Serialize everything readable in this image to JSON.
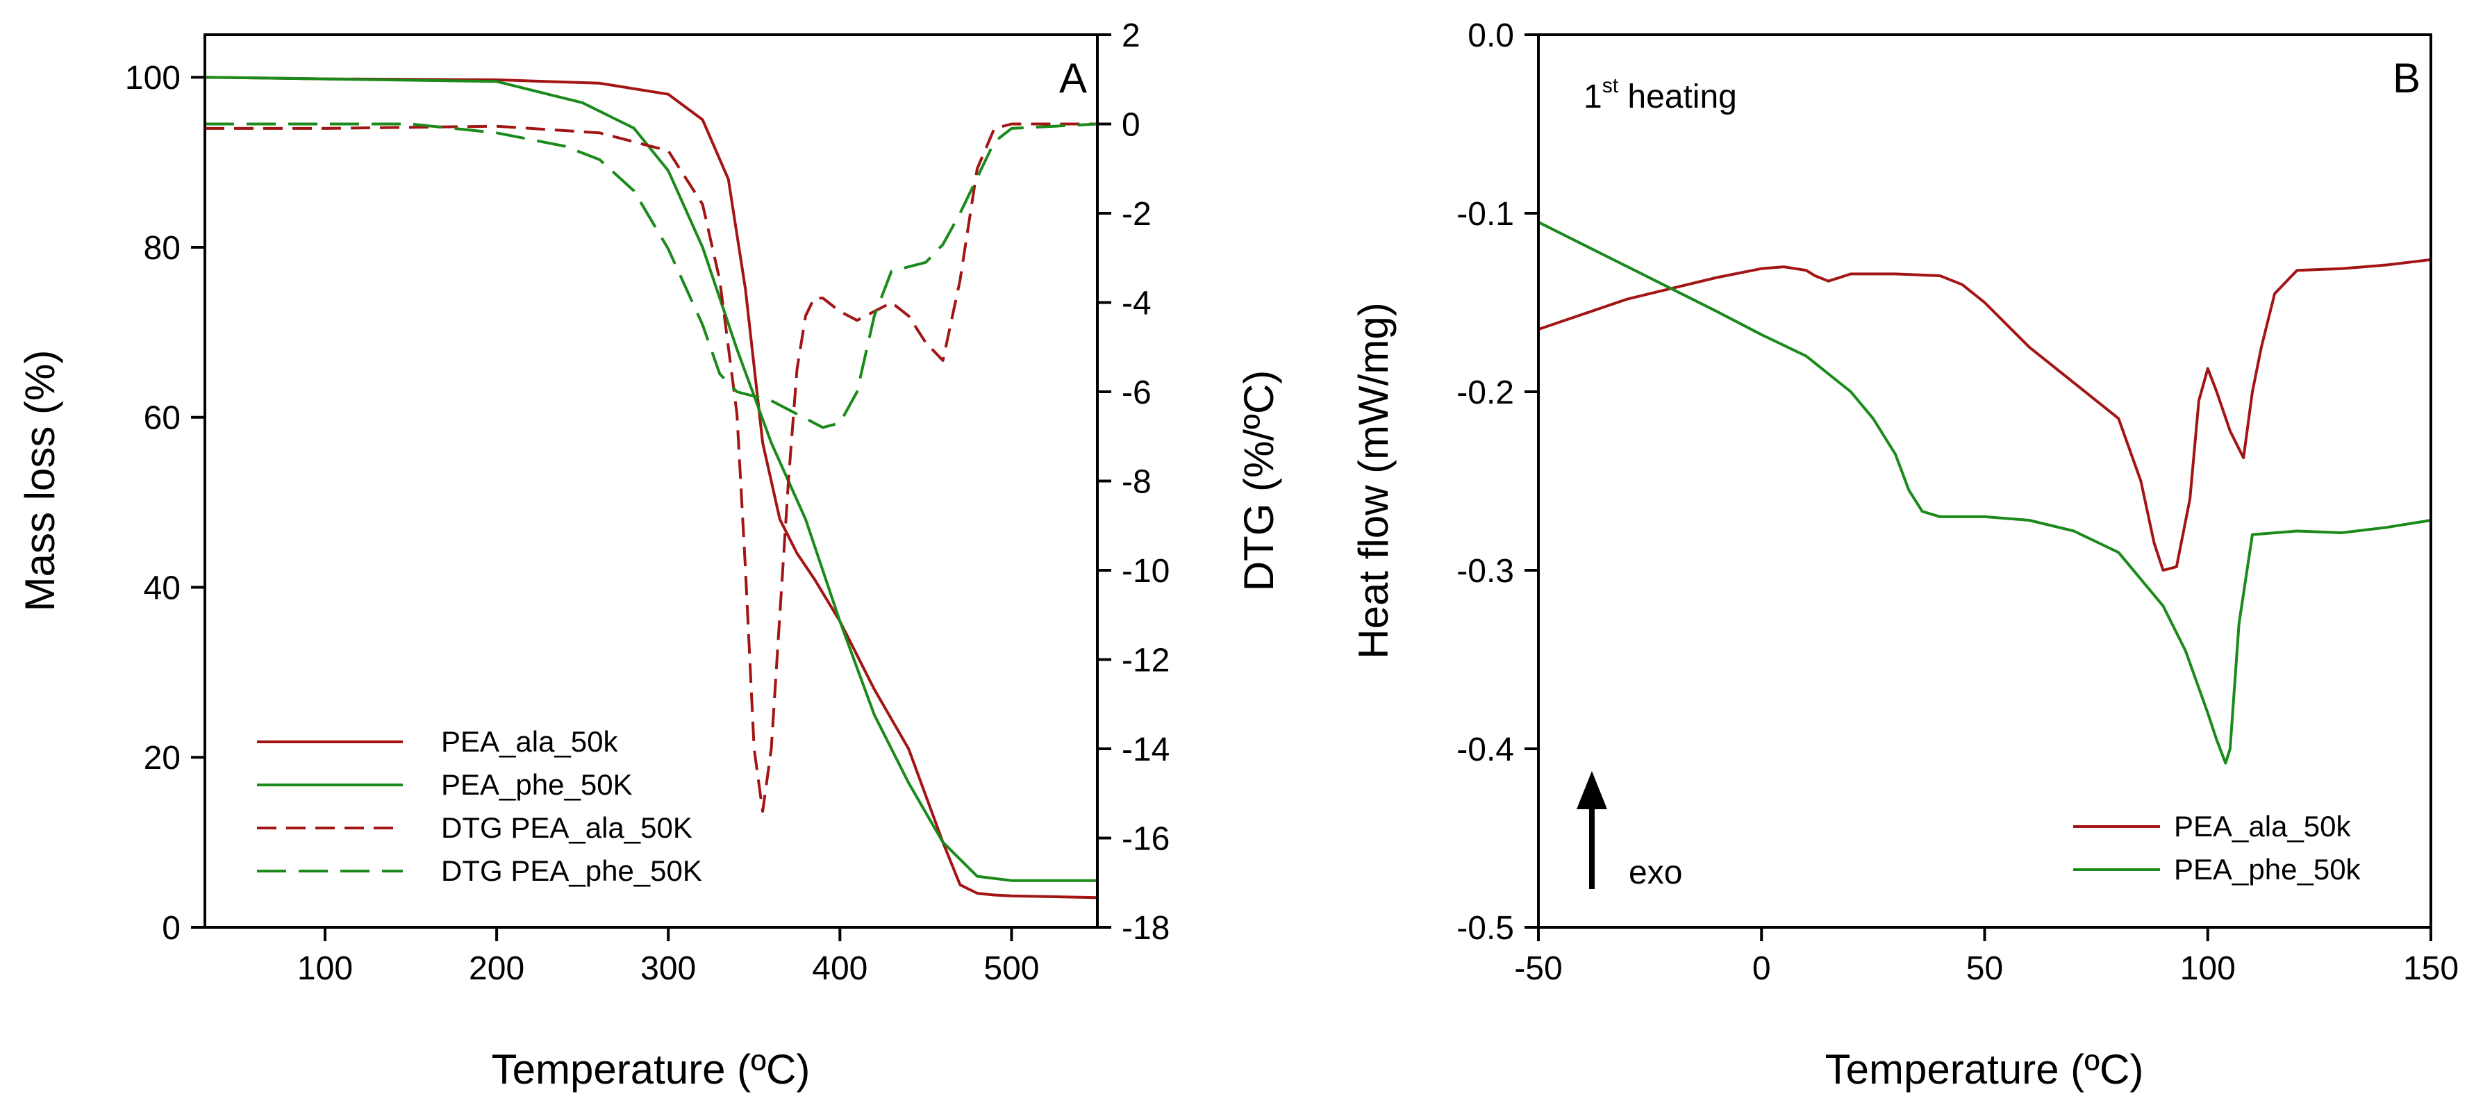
{
  "colors": {
    "ala": "#a31515",
    "phe": "#1a8a1a",
    "axis": "#000000"
  },
  "chart_data": [
    {
      "type": "line",
      "panel_label": "A",
      "xlabel": "Temperature (ºC)",
      "ylabel": "Mass loss (%)",
      "y2label": "DTG (%/ºC)",
      "xlim": [
        30,
        550
      ],
      "ylim": [
        0,
        105
      ],
      "y2lim": [
        -18,
        2
      ],
      "xticks": [
        100,
        200,
        300,
        400,
        500
      ],
      "yticks": [
        0,
        20,
        40,
        60,
        80,
        100
      ],
      "y2ticks": [
        -18,
        -16,
        -14,
        -12,
        -10,
        -8,
        -6,
        -4,
        -2,
        0,
        2
      ],
      "legend": [
        "PEA_ala_50k",
        "PEA_phe_50K",
        "DTG PEA_ala_50K",
        "DTG PEA_phe_50K"
      ],
      "series": [
        {
          "name": "PEA_ala_50k",
          "axis": "left",
          "color": "ala",
          "style": "solid",
          "x": [
            30,
            100,
            200,
            260,
            300,
            320,
            335,
            345,
            355,
            365,
            375,
            385,
            400,
            420,
            440,
            460,
            470,
            480,
            490,
            500,
            550
          ],
          "y": [
            100,
            99.8,
            99.7,
            99.3,
            98,
            95,
            88,
            75,
            57,
            48,
            44,
            41,
            36,
            28,
            21,
            10,
            5,
            4,
            3.8,
            3.7,
            3.5
          ]
        },
        {
          "name": "PEA_phe_50K",
          "axis": "left",
          "color": "phe",
          "style": "solid",
          "x": [
            30,
            100,
            200,
            250,
            280,
            300,
            320,
            340,
            360,
            380,
            400,
            420,
            440,
            460,
            480,
            500,
            550
          ],
          "y": [
            100,
            99.8,
            99.5,
            97,
            94,
            89,
            80,
            68,
            57,
            48,
            36,
            25,
            17,
            10,
            6,
            5.5,
            5.5
          ]
        },
        {
          "name": "DTG PEA_ala_50K",
          "axis": "right",
          "color": "ala",
          "style": "dashed",
          "x": [
            30,
            100,
            200,
            260,
            300,
            320,
            330,
            340,
            345,
            350,
            355,
            360,
            365,
            370,
            375,
            380,
            385,
            390,
            400,
            410,
            420,
            430,
            440,
            450,
            460,
            470,
            480,
            490,
            500,
            550
          ],
          "y": [
            -0.1,
            -0.1,
            -0.05,
            -0.2,
            -0.6,
            -1.8,
            -3.5,
            -6.5,
            -10,
            -14,
            -15.4,
            -14,
            -11,
            -8,
            -5.5,
            -4.3,
            -3.9,
            -3.9,
            -4.2,
            -4.4,
            -4.2,
            -4.0,
            -4.3,
            -4.9,
            -5.3,
            -3.5,
            -1,
            -0.1,
            0,
            0
          ]
        },
        {
          "name": "DTG PEA_phe_50K",
          "axis": "right",
          "color": "phe",
          "style": "dashed",
          "x": [
            30,
            100,
            150,
            200,
            240,
            260,
            280,
            300,
            320,
            330,
            340,
            350,
            360,
            370,
            380,
            390,
            400,
            410,
            420,
            430,
            440,
            450,
            460,
            470,
            480,
            490,
            500,
            550
          ],
          "y": [
            0,
            0,
            0,
            -0.2,
            -0.5,
            -0.8,
            -1.5,
            -2.8,
            -4.5,
            -5.6,
            -6.0,
            -6.1,
            -6.2,
            -6.4,
            -6.6,
            -6.8,
            -6.7,
            -6,
            -4.3,
            -3.3,
            -3.2,
            -3.1,
            -2.7,
            -2.0,
            -1.2,
            -0.4,
            -0.1,
            0
          ]
        }
      ]
    },
    {
      "type": "line",
      "panel_label": "B",
      "annotation_main": "1",
      "annotation_sup": "st",
      "annotation_rest": " heating",
      "arrow_label": "exo",
      "xlabel": "Temperature (ºC)",
      "ylabel": "Heat flow (mW/mg)",
      "xlim": [
        -50,
        150
      ],
      "ylim": [
        -0.5,
        0.0
      ],
      "xticks": [
        -50,
        0,
        50,
        100,
        150
      ],
      "yticks": [
        -0.5,
        -0.4,
        -0.3,
        -0.2,
        -0.1,
        0.0
      ],
      "ytick_labels": [
        "-0.5",
        "-0.4",
        "-0.3",
        "-0.2",
        "-0.1",
        "0.0"
      ],
      "legend": [
        "PEA_ala_50k",
        "PEA_phe_50k"
      ],
      "series": [
        {
          "name": "PEA_ala_50k",
          "color": "ala",
          "x": [
            -50,
            -30,
            -10,
            0,
            5,
            10,
            12,
            15,
            20,
            30,
            40,
            45,
            50,
            60,
            70,
            80,
            85,
            88,
            90,
            93,
            96,
            98,
            100,
            102,
            105,
            108,
            110,
            112,
            115,
            120,
            130,
            140,
            150
          ],
          "y": [
            -0.165,
            -0.148,
            -0.136,
            -0.131,
            -0.13,
            -0.132,
            -0.135,
            -0.138,
            -0.134,
            -0.134,
            -0.135,
            -0.14,
            -0.15,
            -0.175,
            -0.195,
            -0.215,
            -0.25,
            -0.285,
            -0.3,
            -0.298,
            -0.26,
            -0.205,
            -0.187,
            -0.2,
            -0.222,
            -0.237,
            -0.2,
            -0.175,
            -0.145,
            -0.132,
            -0.131,
            -0.129,
            -0.126
          ]
        },
        {
          "name": "PEA_phe_50k",
          "color": "phe",
          "x": [
            -50,
            -30,
            -10,
            0,
            10,
            20,
            25,
            30,
            33,
            36,
            40,
            50,
            60,
            70,
            80,
            90,
            95,
            100,
            102,
            104,
            105,
            107,
            110,
            120,
            130,
            140,
            150
          ],
          "y": [
            -0.105,
            -0.13,
            -0.155,
            -0.168,
            -0.18,
            -0.2,
            -0.215,
            -0.235,
            -0.255,
            -0.267,
            -0.27,
            -0.27,
            -0.272,
            -0.278,
            -0.29,
            -0.32,
            -0.345,
            -0.38,
            -0.395,
            -0.408,
            -0.4,
            -0.33,
            -0.28,
            -0.278,
            -0.279,
            -0.276,
            -0.272
          ]
        }
      ]
    }
  ]
}
